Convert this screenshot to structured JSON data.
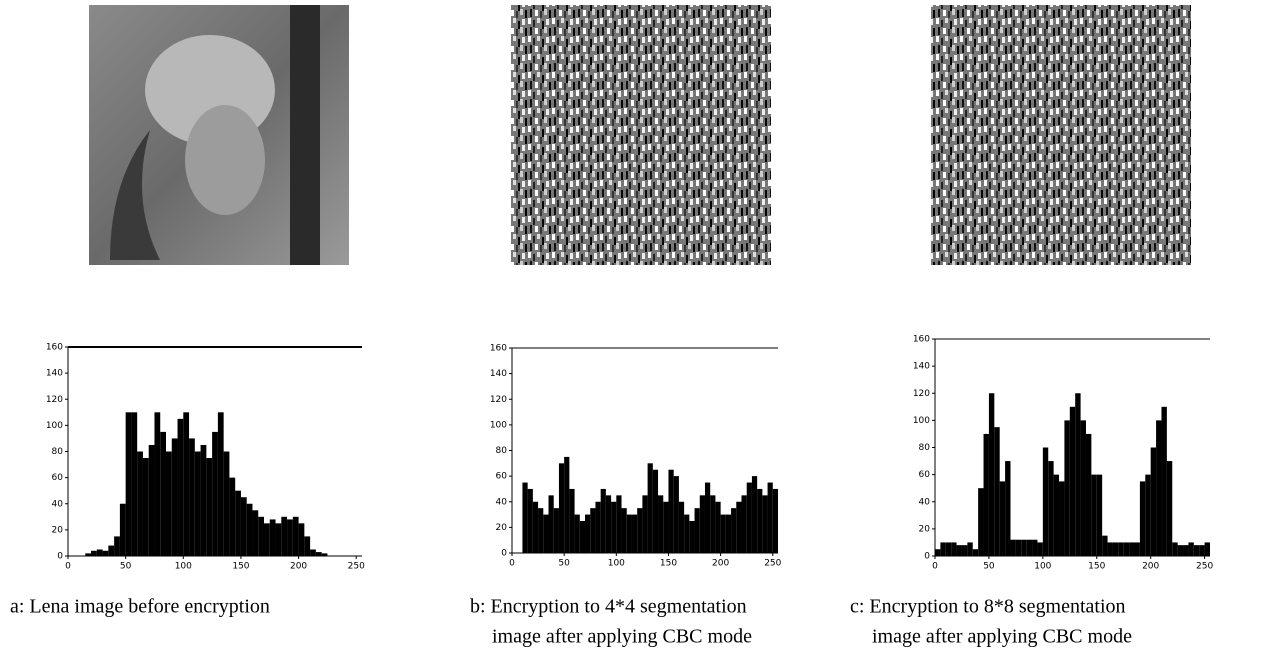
{
  "chart_data": [
    {
      "type": "histogram",
      "color": "#000000",
      "caption": [
        "a: Lena image before encryption"
      ],
      "bins": [
        0,
        5,
        10,
        15,
        20,
        25,
        30,
        35,
        40,
        45,
        50,
        55,
        60,
        65,
        70,
        75,
        80,
        85,
        90,
        95,
        100,
        105,
        110,
        115,
        120,
        125,
        130,
        135,
        140,
        145,
        150,
        155,
        160,
        165,
        170,
        175,
        180,
        185,
        190,
        195,
        200,
        205,
        210,
        215,
        220,
        225,
        230,
        235,
        240,
        245,
        250,
        255
      ],
      "values": [
        0,
        0,
        0,
        2,
        4,
        5,
        4,
        8,
        15,
        40,
        110,
        110,
        80,
        75,
        85,
        110,
        95,
        80,
        90,
        105,
        110,
        90,
        80,
        85,
        75,
        95,
        110,
        80,
        60,
        50,
        45,
        40,
        35,
        30,
        25,
        28,
        25,
        30,
        28,
        30,
        25,
        15,
        5,
        3,
        2,
        0,
        0,
        0,
        0,
        0,
        0
      ],
      "xlim": [
        0,
        255
      ],
      "ylim": [
        0,
        160
      ],
      "xticks": [
        0,
        50,
        100,
        150,
        200,
        250
      ],
      "yticks": [
        0,
        20,
        40,
        60,
        80,
        100,
        120,
        140,
        160
      ]
    },
    {
      "type": "histogram",
      "color": "#000000",
      "caption": [
        "b: Encryption to 4*4 segmentation",
        "image after applying CBC mode"
      ],
      "bins": [
        0,
        5,
        10,
        15,
        20,
        25,
        30,
        35,
        40,
        45,
        50,
        55,
        60,
        65,
        70,
        75,
        80,
        85,
        90,
        95,
        100,
        105,
        110,
        115,
        120,
        125,
        130,
        135,
        140,
        145,
        150,
        155,
        160,
        165,
        170,
        175,
        180,
        185,
        190,
        195,
        200,
        205,
        210,
        215,
        220,
        225,
        230,
        235,
        240,
        245,
        250,
        255
      ],
      "values": [
        0,
        0,
        55,
        50,
        40,
        35,
        30,
        45,
        35,
        70,
        75,
        50,
        30,
        25,
        30,
        35,
        40,
        50,
        45,
        40,
        45,
        35,
        30,
        30,
        35,
        45,
        70,
        65,
        45,
        40,
        65,
        60,
        40,
        30,
        25,
        35,
        45,
        55,
        45,
        40,
        30,
        30,
        35,
        40,
        45,
        55,
        60,
        50,
        45,
        55,
        50
      ],
      "xlim": [
        0,
        255
      ],
      "ylim": [
        0,
        160
      ],
      "xticks": [
        0,
        50,
        100,
        150,
        200,
        250
      ],
      "yticks": [
        0,
        20,
        40,
        60,
        80,
        100,
        120,
        140,
        160
      ]
    },
    {
      "type": "histogram",
      "color": "#000000",
      "caption": [
        "c: Encryption to 8*8 segmentation",
        "image after applying CBC mode"
      ],
      "bins": [
        0,
        5,
        10,
        15,
        20,
        25,
        30,
        35,
        40,
        45,
        50,
        55,
        60,
        65,
        70,
        75,
        80,
        85,
        90,
        95,
        100,
        105,
        110,
        115,
        120,
        125,
        130,
        135,
        140,
        145,
        150,
        155,
        160,
        165,
        170,
        175,
        180,
        185,
        190,
        195,
        200,
        205,
        210,
        215,
        220,
        225,
        230,
        235,
        240,
        245,
        250,
        255
      ],
      "values": [
        5,
        10,
        10,
        10,
        8,
        8,
        10,
        5,
        50,
        90,
        120,
        95,
        55,
        70,
        12,
        12,
        12,
        12,
        12,
        10,
        80,
        70,
        60,
        55,
        100,
        110,
        120,
        100,
        90,
        60,
        60,
        15,
        10,
        10,
        10,
        10,
        10,
        10,
        55,
        60,
        80,
        100,
        110,
        70,
        10,
        8,
        8,
        10,
        8,
        8,
        10
      ],
      "xlim": [
        0,
        255
      ],
      "ylim": [
        0,
        160
      ],
      "xticks": [
        0,
        50,
        100,
        150,
        200,
        250
      ],
      "yticks": [
        0,
        20,
        40,
        60,
        80,
        100,
        120,
        140,
        160
      ]
    }
  ]
}
